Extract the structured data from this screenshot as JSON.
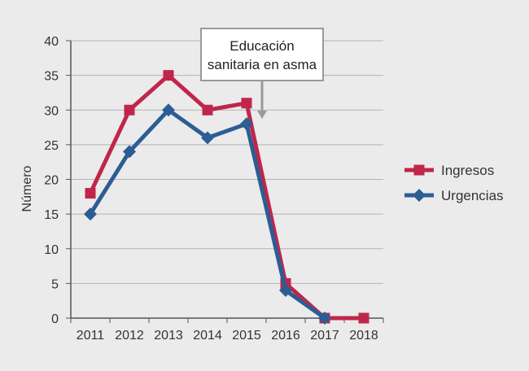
{
  "chart_data": {
    "type": "line",
    "title": "",
    "xlabel": "",
    "ylabel": "Número",
    "ylim": [
      0,
      40
    ],
    "yticks": [
      0,
      5,
      10,
      15,
      20,
      25,
      30,
      35,
      40
    ],
    "categories": [
      "2011",
      "2012",
      "2013",
      "2014",
      "2015",
      "2016",
      "2017",
      "2018"
    ],
    "grid": true,
    "legend_position": "right",
    "series": [
      {
        "name": "Ingresos",
        "marker": "square",
        "color": "#c0264a",
        "values": [
          18,
          30,
          35,
          30,
          31,
          5,
          0,
          0
        ]
      },
      {
        "name": "Urgencias",
        "marker": "diamond",
        "color": "#2c5d94",
        "values": [
          15,
          24,
          30,
          26,
          28,
          4,
          0,
          null
        ]
      }
    ],
    "annotation": {
      "lines": [
        "Educación",
        "sanitaria en asma"
      ],
      "between": [
        "2015",
        "2016"
      ]
    }
  }
}
